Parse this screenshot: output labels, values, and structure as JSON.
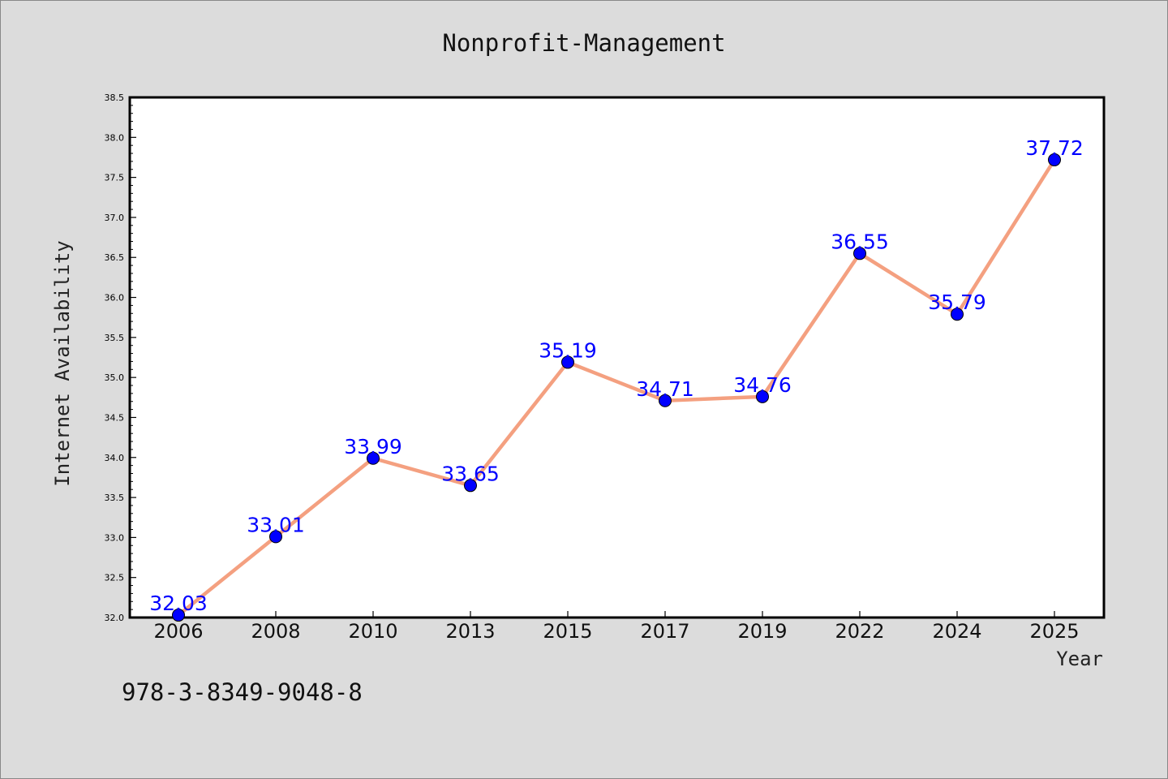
{
  "chart_data": {
    "type": "line",
    "title": "Nonprofit-Management",
    "xlabel": "Year",
    "ylabel": "Internet Availability",
    "categories": [
      "2006",
      "2008",
      "2010",
      "2013",
      "2015",
      "2017",
      "2019",
      "2022",
      "2024",
      "2025"
    ],
    "series": [
      {
        "values": [
          32.03,
          33.01,
          33.99,
          33.65,
          35.19,
          34.71,
          34.76,
          36.55,
          35.79,
          37.72
        ],
        "data_labels": [
          "32.03",
          "33.01",
          "33.99",
          "33.65",
          "35.19",
          "34.71",
          "34.76",
          "36.55",
          "35.79",
          "37.72"
        ]
      }
    ],
    "ylim": [
      32.0,
      38.5
    ],
    "yticks": [
      "32.0",
      "32.5",
      "33.0",
      "33.5",
      "34.0",
      "34.5",
      "35.0",
      "35.5",
      "36.0",
      "36.5",
      "37.0",
      "37.5",
      "38.0",
      "38.5"
    ],
    "grid": false,
    "colors": {
      "line": "#f4a080",
      "marker": "#0000ff",
      "labels": "#0000ff",
      "background": "#dcdcdc",
      "plot_background": "#ffffff"
    }
  },
  "note": "978-3-8349-9048-8"
}
